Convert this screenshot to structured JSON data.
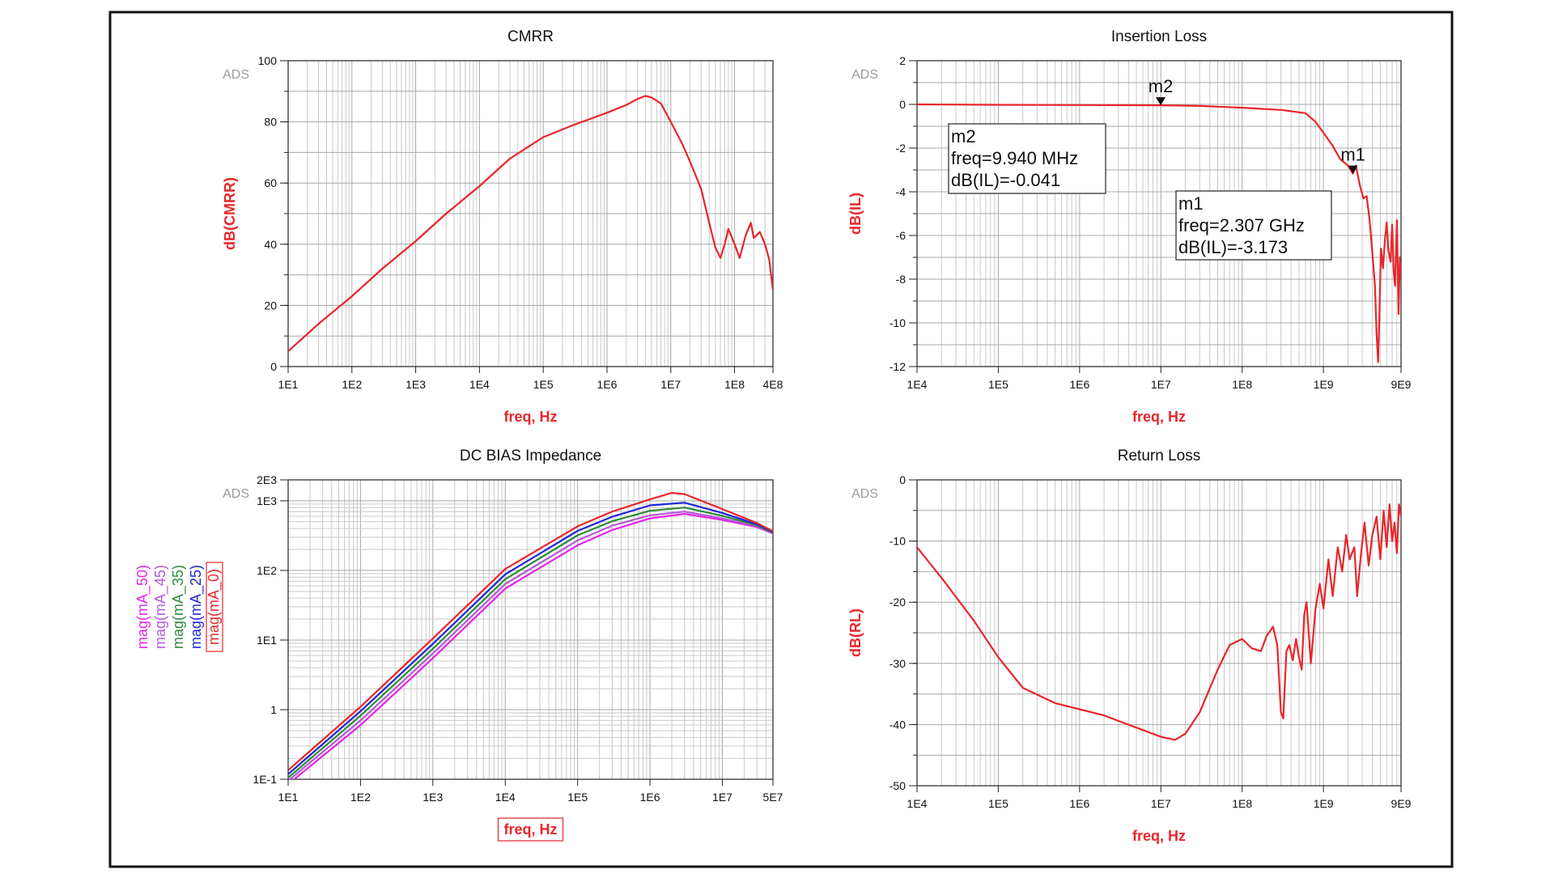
{
  "colors": {
    "curve": "#e8262b",
    "axis_label": "#e8262b",
    "grid": "#c9c9c9",
    "frame": "#111111",
    "watermark": "#9a9a9a",
    "series": {
      "mag(mA_50)": "#e524e8",
      "mag(mA_45)": "#b45ad6",
      "mag(mA_35)": "#2e8b3a",
      "mag(mA_25)": "#1f27d6",
      "mag(mA_0)": "#e8262b"
    }
  },
  "chart_data": [
    {
      "type": "line",
      "title": "CMRR",
      "watermark": "ADS",
      "xlabel": "freq, Hz",
      "ylabel": "dB(CMRR)",
      "xscale": "log",
      "xlim": [
        10,
        400000000
      ],
      "ylim": [
        0,
        100
      ],
      "xticks": [
        "1E1",
        "1E2",
        "1E3",
        "1E4",
        "1E5",
        "1E6",
        "1E7",
        "1E8",
        "4E8"
      ],
      "xtick_values": [
        10,
        100,
        1000,
        10000,
        100000,
        1000000,
        10000000,
        100000000,
        400000000
      ],
      "yticks": [
        "0",
        "20",
        "40",
        "60",
        "80",
        "100"
      ],
      "ytick_values": [
        0,
        20,
        40,
        60,
        80,
        100
      ],
      "grid": true,
      "series": [
        {
          "x": [
            10,
            30,
            100,
            300,
            1000,
            3000,
            10000,
            30000,
            100000,
            300000,
            1000000,
            2000000,
            3000000,
            4000000,
            5000000,
            7000000,
            10000000,
            15000000,
            20000000,
            30000000,
            40000000,
            50000000,
            60000000,
            70000000,
            80000000,
            100000000,
            120000000,
            150000000,
            180000000,
            200000000,
            250000000,
            300000000,
            350000000,
            400000000
          ],
          "y": [
            5,
            14,
            23,
            32,
            41,
            50,
            59,
            68,
            75,
            79,
            83,
            85.5,
            87.5,
            88.5,
            88,
            86,
            80,
            73,
            67,
            58,
            47,
            39,
            35.5,
            40,
            45,
            40,
            35.5,
            43,
            47,
            42,
            44,
            40,
            35,
            25
          ]
        }
      ]
    },
    {
      "type": "line",
      "title": "Insertion Loss",
      "watermark": "ADS",
      "xlabel": "freq, Hz",
      "ylabel": "dB(IL)",
      "xscale": "log",
      "xlim": [
        10000,
        9000000000
      ],
      "ylim": [
        -12,
        2
      ],
      "xticks": [
        "1E4",
        "1E5",
        "1E6",
        "1E7",
        "1E8",
        "1E9",
        "9E9"
      ],
      "xtick_values": [
        10000,
        100000,
        1000000,
        10000000,
        100000000,
        1000000000,
        9000000000
      ],
      "yticks": [
        "-12",
        "-10",
        "-8",
        "-6",
        "-4",
        "-2",
        "0",
        "2"
      ],
      "ytick_values": [
        -12,
        -10,
        -8,
        -6,
        -4,
        -2,
        0,
        2
      ],
      "grid": true,
      "markers": [
        {
          "name": "m2",
          "x": 9940000,
          "y": -0.041,
          "freq": "freq=9.940 MHz",
          "value": "dB(IL)=-0.041"
        },
        {
          "name": "m1",
          "x": 2307000000,
          "y": -3.173,
          "freq": "freq=2.307 GHz",
          "value": "dB(IL)=-3.173"
        }
      ],
      "series": [
        {
          "x": [
            10000,
            100000,
            1000000,
            9940000,
            30000000,
            100000000,
            300000000,
            600000000,
            800000000,
            1000000000,
            1300000000,
            1600000000,
            2000000000,
            2307000000,
            2500000000,
            2800000000,
            3100000000,
            3400000000,
            3700000000,
            4000000000,
            4300000000,
            4500000000,
            4700000000,
            4900000000,
            5100000000,
            5400000000,
            5700000000,
            6000000000,
            6300000000,
            6700000000,
            7000000000,
            7300000000,
            7600000000,
            8000000000,
            8400000000,
            8700000000,
            9000000000
          ],
          "y": [
            0,
            -0.02,
            -0.03,
            -0.041,
            -0.07,
            -0.15,
            -0.25,
            -0.4,
            -0.8,
            -1.3,
            -1.9,
            -2.5,
            -2.8,
            -3.173,
            -2.8,
            -3.7,
            -4.3,
            -4.2,
            -5.3,
            -6.8,
            -8.3,
            -10.5,
            -11.8,
            -9.3,
            -6.6,
            -7.5,
            -6.2,
            -5.4,
            -6.7,
            -7.2,
            -5.5,
            -7.6,
            -8.3,
            -5.3,
            -9.6,
            -7.0,
            -8.0
          ]
        }
      ]
    },
    {
      "type": "line",
      "title": "DC BIAS Impedance",
      "watermark": "ADS",
      "xlabel": "freq, Hz",
      "xscale": "log",
      "yscale": "log",
      "xlim": [
        10,
        50000000
      ],
      "ylim": [
        0.1,
        2000
      ],
      "xticks": [
        "1E1",
        "1E2",
        "1E3",
        "1E4",
        "1E5",
        "1E6",
        "1E7",
        "5E7"
      ],
      "xtick_values": [
        10,
        100,
        1000,
        10000,
        100000,
        1000000,
        10000000,
        50000000
      ],
      "yticks": [
        "1E-1",
        "1",
        "1E1",
        "1E2",
        "1E3",
        "2E3"
      ],
      "ytick_values": [
        0.1,
        1,
        10,
        100,
        1000,
        2000
      ],
      "grid": true,
      "legend": "left",
      "series": [
        {
          "name": "mag(mA_50)",
          "x": [
            10,
            100,
            1000,
            10000,
            100000,
            300000,
            1000000,
            3000000,
            10000000,
            30000000,
            50000000
          ],
          "y": [
            0.085,
            0.6,
            5.5,
            55,
            230,
            380,
            560,
            650,
            530,
            420,
            340
          ]
        },
        {
          "name": "mag(mA_45)",
          "x": [
            10,
            100,
            1000,
            10000,
            100000,
            300000,
            1000000,
            3000000,
            10000000,
            30000000,
            50000000
          ],
          "y": [
            0.095,
            0.7,
            6.4,
            64,
            270,
            440,
            620,
            700,
            560,
            430,
            345
          ]
        },
        {
          "name": "mag(mA_35)",
          "x": [
            10,
            100,
            1000,
            10000,
            100000,
            300000,
            1000000,
            3000000,
            10000000,
            30000000,
            50000000
          ],
          "y": [
            0.105,
            0.82,
            7.5,
            75,
            320,
            510,
            720,
            800,
            610,
            445,
            350
          ]
        },
        {
          "name": "mag(mA_25)",
          "x": [
            10,
            100,
            1000,
            10000,
            100000,
            300000,
            1000000,
            3000000,
            10000000,
            30000000,
            50000000
          ],
          "y": [
            0.118,
            0.95,
            8.8,
            88,
            370,
            590,
            860,
            940,
            670,
            460,
            355
          ]
        },
        {
          "name": "mag(mA_0)",
          "x": [
            10,
            100,
            1000,
            10000,
            100000,
            300000,
            1000000,
            2000000,
            3000000,
            10000000,
            30000000,
            50000000
          ],
          "y": [
            0.135,
            1.1,
            10.5,
            105,
            430,
            700,
            1050,
            1300,
            1250,
            760,
            480,
            365
          ]
        }
      ]
    },
    {
      "type": "line",
      "title": "Return Loss",
      "watermark": "ADS",
      "xlabel": "freq, Hz",
      "ylabel": "dB(RL)",
      "xscale": "log",
      "xlim": [
        10000,
        9000000000
      ],
      "ylim": [
        -50,
        0
      ],
      "xticks": [
        "1E4",
        "1E5",
        "1E6",
        "1E7",
        "1E8",
        "1E9",
        "9E9"
      ],
      "xtick_values": [
        10000,
        100000,
        1000000,
        10000000,
        100000000,
        1000000000,
        9000000000
      ],
      "yticks": [
        "-50",
        "-40",
        "-30",
        "-20",
        "-10",
        "0"
      ],
      "ytick_values": [
        -50,
        -40,
        -30,
        -20,
        -10,
        0
      ],
      "grid": true,
      "series": [
        {
          "x": [
            10000,
            20000,
            50000,
            100000,
            200000,
            500000,
            1000000,
            2000000,
            5000000,
            10000000,
            15000000,
            20000000,
            30000000,
            50000000,
            70000000,
            100000000,
            130000000,
            170000000,
            200000000,
            240000000,
            270000000,
            300000000,
            320000000,
            350000000,
            380000000,
            420000000,
            460000000,
            500000000,
            540000000,
            580000000,
            620000000,
            700000000,
            800000000,
            900000000,
            1000000000,
            1150000000,
            1300000000,
            1500000000,
            1700000000,
            1900000000,
            2100000000,
            2400000000,
            2600000000,
            2900000000,
            3200000000,
            3600000000,
            4000000000,
            4500000000,
            5000000000,
            5500000000,
            6000000000,
            6500000000,
            7000000000,
            7500000000,
            8000000000,
            8500000000,
            9000000000
          ],
          "y": [
            -11,
            -16,
            -23,
            -29,
            -34,
            -36.5,
            -37.5,
            -38.5,
            -40.5,
            -42,
            -42.5,
            -41.5,
            -38,
            -31,
            -27,
            -26,
            -27.5,
            -28,
            -25.5,
            -24,
            -27,
            -38,
            -39,
            -28,
            -27,
            -29.5,
            -26,
            -29,
            -31,
            -22,
            -20,
            -30,
            -21,
            -17,
            -21,
            -13,
            -19,
            -11,
            -15,
            -9,
            -13,
            -11,
            -19,
            -12,
            -7,
            -14,
            -9,
            -6,
            -13,
            -5,
            -11,
            -4,
            -10,
            -7,
            -12,
            -4,
            -6
          ]
        }
      ]
    }
  ]
}
